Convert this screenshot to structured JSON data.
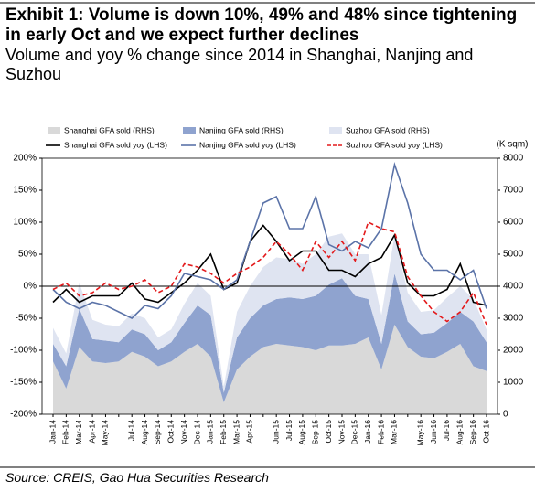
{
  "chart_data": {
    "type": "combo",
    "title": "Exhibit 1: Volume is down 10%, 49% and 48% since tightening in early Oct and we expect further declines",
    "subtitle": "Volume and yoy % change since 2014 in Shanghai, Nanjing and Suzhou",
    "source": "Source: CREIS, Gao Hua Securities Research",
    "y2_unit": "(K sqm)",
    "categories": [
      "Jan-14",
      "Feb-14",
      "Mar-14",
      "Apr-14",
      "May-14",
      null,
      "Jul-14",
      "Aug-14",
      "Sep-14",
      "Oct-14",
      "Nov-14",
      "Dec-14",
      "Jan-15",
      "Feb-15",
      "Mar-15",
      "Apr-15",
      null,
      "Jun-15",
      "Jul-15",
      "Aug-15",
      "Sep-15",
      "Oct-15",
      "Nov-15",
      "Dec-15",
      "Jan-16",
      "Feb-16",
      "Mar-16",
      null,
      "May-16",
      "Jun-16",
      "Jul-16",
      "Aug-16",
      "Sep-16",
      "Oct-16"
    ],
    "ylim": [
      -200,
      200
    ],
    "yticks": [
      {
        "value": -200,
        "label": "-200%"
      },
      {
        "value": -150,
        "label": "-150%"
      },
      {
        "value": -100,
        "label": "-100%"
      },
      {
        "value": -50,
        "label": "-50%"
      },
      {
        "value": 0,
        "label": "0%"
      },
      {
        "value": 50,
        "label": "50%"
      },
      {
        "value": 100,
        "label": "100%"
      },
      {
        "value": 150,
        "label": "150%"
      },
      {
        "value": 200,
        "label": "200%"
      }
    ],
    "y2lim": [
      0,
      8000
    ],
    "y2ticks": [
      0,
      1000,
      2000,
      3000,
      4000,
      5000,
      6000,
      7000,
      8000
    ],
    "series": [
      {
        "name": "Shanghai GFA sold (RHS)",
        "type": "area",
        "axis": "y2",
        "color": "#d9d9d9",
        "values": [
          1650,
          800,
          2100,
          1650,
          1600,
          1650,
          1950,
          1800,
          1500,
          1650,
          1950,
          2200,
          1800,
          370,
          1400,
          1800,
          2100,
          2200,
          2150,
          2100,
          2000,
          2150,
          2150,
          2200,
          2400,
          1400,
          2800,
          2100,
          1800,
          1750,
          1950,
          2200,
          1500,
          1350
        ]
      },
      {
        "name": "Nanjing GFA sold (RHS)",
        "type": "area",
        "axis": "y2",
        "color": "#8fa3cf",
        "values": [
          550,
          700,
          1200,
          700,
          700,
          600,
          700,
          700,
          500,
          600,
          900,
          1200,
          1300,
          300,
          1000,
          1200,
          1300,
          1400,
          1500,
          1500,
          1700,
          1900,
          2100,
          1500,
          1200,
          800,
          1600,
          800,
          700,
          800,
          900,
          1000,
          1400,
          900
        ]
      },
      {
        "name": "Suzhou GFA sold (RHS)",
        "type": "area",
        "axis": "y2",
        "color": "#dfe4f1",
        "values": [
          500,
          400,
          800,
          600,
          500,
          500,
          500,
          500,
          400,
          400,
          600,
          700,
          600,
          200,
          800,
          1000,
          1200,
          1300,
          1200,
          1100,
          1300,
          1500,
          1400,
          1300,
          1400,
          900,
          1200,
          900,
          700,
          700,
          800,
          800,
          700,
          400
        ]
      },
      {
        "name": "Shanghai GFA sold yoy (LHS)",
        "type": "line",
        "color": "#000000",
        "style": "solid",
        "values": [
          -25,
          -5,
          -25,
          -15,
          -15,
          -15,
          5,
          -20,
          -25,
          -10,
          5,
          25,
          50,
          -5,
          5,
          70,
          95,
          70,
          40,
          55,
          55,
          25,
          25,
          15,
          35,
          45,
          80,
          5,
          -15,
          -15,
          -5,
          35,
          -25,
          -30
        ]
      },
      {
        "name": "Nanjing GFA sold yoy (LHS)",
        "type": "line",
        "color": "#5b73a8",
        "style": "solid",
        "values": [
          -5,
          -25,
          -35,
          -25,
          -30,
          -40,
          -50,
          -30,
          -35,
          -15,
          20,
          15,
          10,
          -5,
          10,
          70,
          130,
          140,
          90,
          90,
          140,
          65,
          55,
          70,
          60,
          90,
          190,
          130,
          50,
          25,
          25,
          10,
          25,
          -35
        ]
      },
      {
        "name": "Suzhou GFA sold yoy (LHS)",
        "type": "line",
        "color": "#e31a1c",
        "style": "dashed",
        "values": [
          -5,
          5,
          -15,
          -10,
          5,
          -5,
          0,
          10,
          -10,
          0,
          35,
          30,
          20,
          5,
          20,
          30,
          45,
          70,
          50,
          25,
          70,
          45,
          70,
          40,
          100,
          90,
          85,
          15,
          -15,
          -40,
          -55,
          -40,
          -10,
          -60
        ]
      }
    ]
  }
}
